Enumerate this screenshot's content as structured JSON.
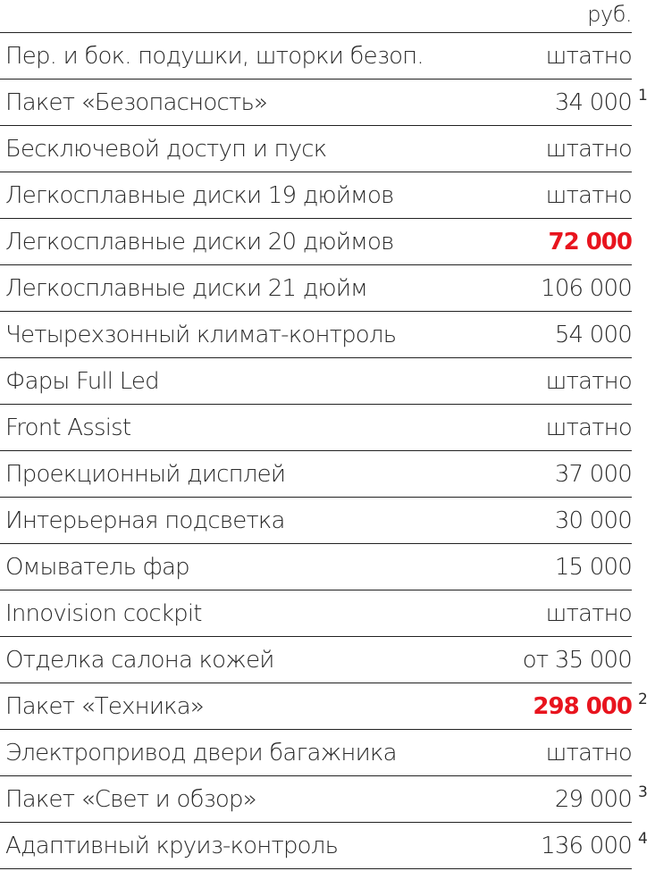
{
  "unit": "руб.",
  "accent_color": "#e8141e",
  "rows": [
    {
      "name": "Пер. и бок. подушки, шторки безоп.",
      "value": "штатно",
      "note": "",
      "highlight": false
    },
    {
      "name": "Пакет «Безопасность»",
      "value": "34 000",
      "note": "1",
      "highlight": false
    },
    {
      "name": "Бесключевой доступ и пуск",
      "value": "штатно",
      "note": "",
      "highlight": false
    },
    {
      "name": "Легкосплавные диски 19 дюймов",
      "value": "штатно",
      "note": "",
      "highlight": false
    },
    {
      "name": "Легкосплавные диски 20 дюймов",
      "value": "72 000",
      "note": "",
      "highlight": true
    },
    {
      "name": "Легкосплавные диски 21 дюйм",
      "value": "106 000",
      "note": "",
      "highlight": false
    },
    {
      "name": "Четырехзонный климат-контроль",
      "value": "54 000",
      "note": "",
      "highlight": false
    },
    {
      "name": "Фары Full Led",
      "value": "штатно",
      "note": "",
      "highlight": false
    },
    {
      "name": "Front Assist",
      "value": "штатно",
      "note": "",
      "highlight": false
    },
    {
      "name": "Проекционный дисплей",
      "value": "37 000",
      "note": "",
      "highlight": false
    },
    {
      "name": "Интерьерная подсветка",
      "value": "30 000",
      "note": "",
      "highlight": false
    },
    {
      "name": "Омыватель фар",
      "value": "15 000",
      "note": "",
      "highlight": false
    },
    {
      "name": "Innovision cockpit",
      "value": "штатно",
      "note": "",
      "highlight": false
    },
    {
      "name": "Отделка салона кожей",
      "value": "от 35 000",
      "note": "",
      "highlight": false
    },
    {
      "name": "Пакет «Техника»",
      "value": "298 000",
      "note": "2",
      "highlight": true
    },
    {
      "name": "Электропривод двери багажника",
      "value": "штатно",
      "note": "",
      "highlight": false
    },
    {
      "name": "Пакет «Свет и обзор»",
      "value": "29 000",
      "note": "3",
      "highlight": false
    },
    {
      "name": "Адаптивный круиз-контроль",
      "value": "136 000",
      "note": "4",
      "highlight": false
    }
  ]
}
